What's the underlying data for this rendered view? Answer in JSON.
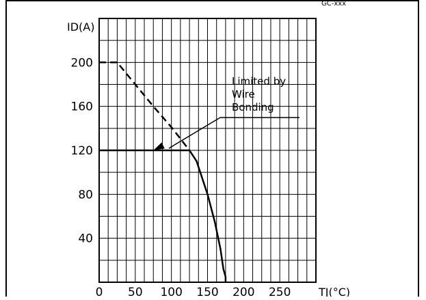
{
  "chart_data": {
    "type": "line",
    "tag": "GC-xxx",
    "ylabel": "ID(A)",
    "xlabel_unit": "TJ(°C)",
    "xlim": [
      0,
      300
    ],
    "ylim": [
      0,
      240
    ],
    "grid": true,
    "x_ticks": [
      0,
      50,
      100,
      150,
      200,
      250
    ],
    "y_ticks": [
      40,
      80,
      120,
      160,
      200
    ],
    "x_tick_labels": [
      "0",
      "50",
      "100",
      "150",
      "200",
      "250"
    ],
    "y_tick_labels": [
      "40",
      "80",
      "120",
      "160",
      "200"
    ],
    "annotation": {
      "text": [
        "Limited by",
        "Wire",
        "Bonding"
      ],
      "arrow_to": [
        75,
        120
      ]
    },
    "series": [
      {
        "style": "dashed",
        "x": [
          0,
          25,
          50,
          75,
          100,
          125
        ],
        "y": [
          200,
          200,
          180,
          160,
          141,
          120
        ]
      },
      {
        "style": "solid",
        "x": [
          0,
          25,
          50,
          75,
          100,
          125,
          135,
          150,
          160,
          168,
          172,
          175,
          175
        ],
        "y": [
          120,
          120,
          120,
          120,
          120,
          120,
          110,
          80,
          55,
          30,
          12,
          5,
          0
        ]
      }
    ]
  }
}
